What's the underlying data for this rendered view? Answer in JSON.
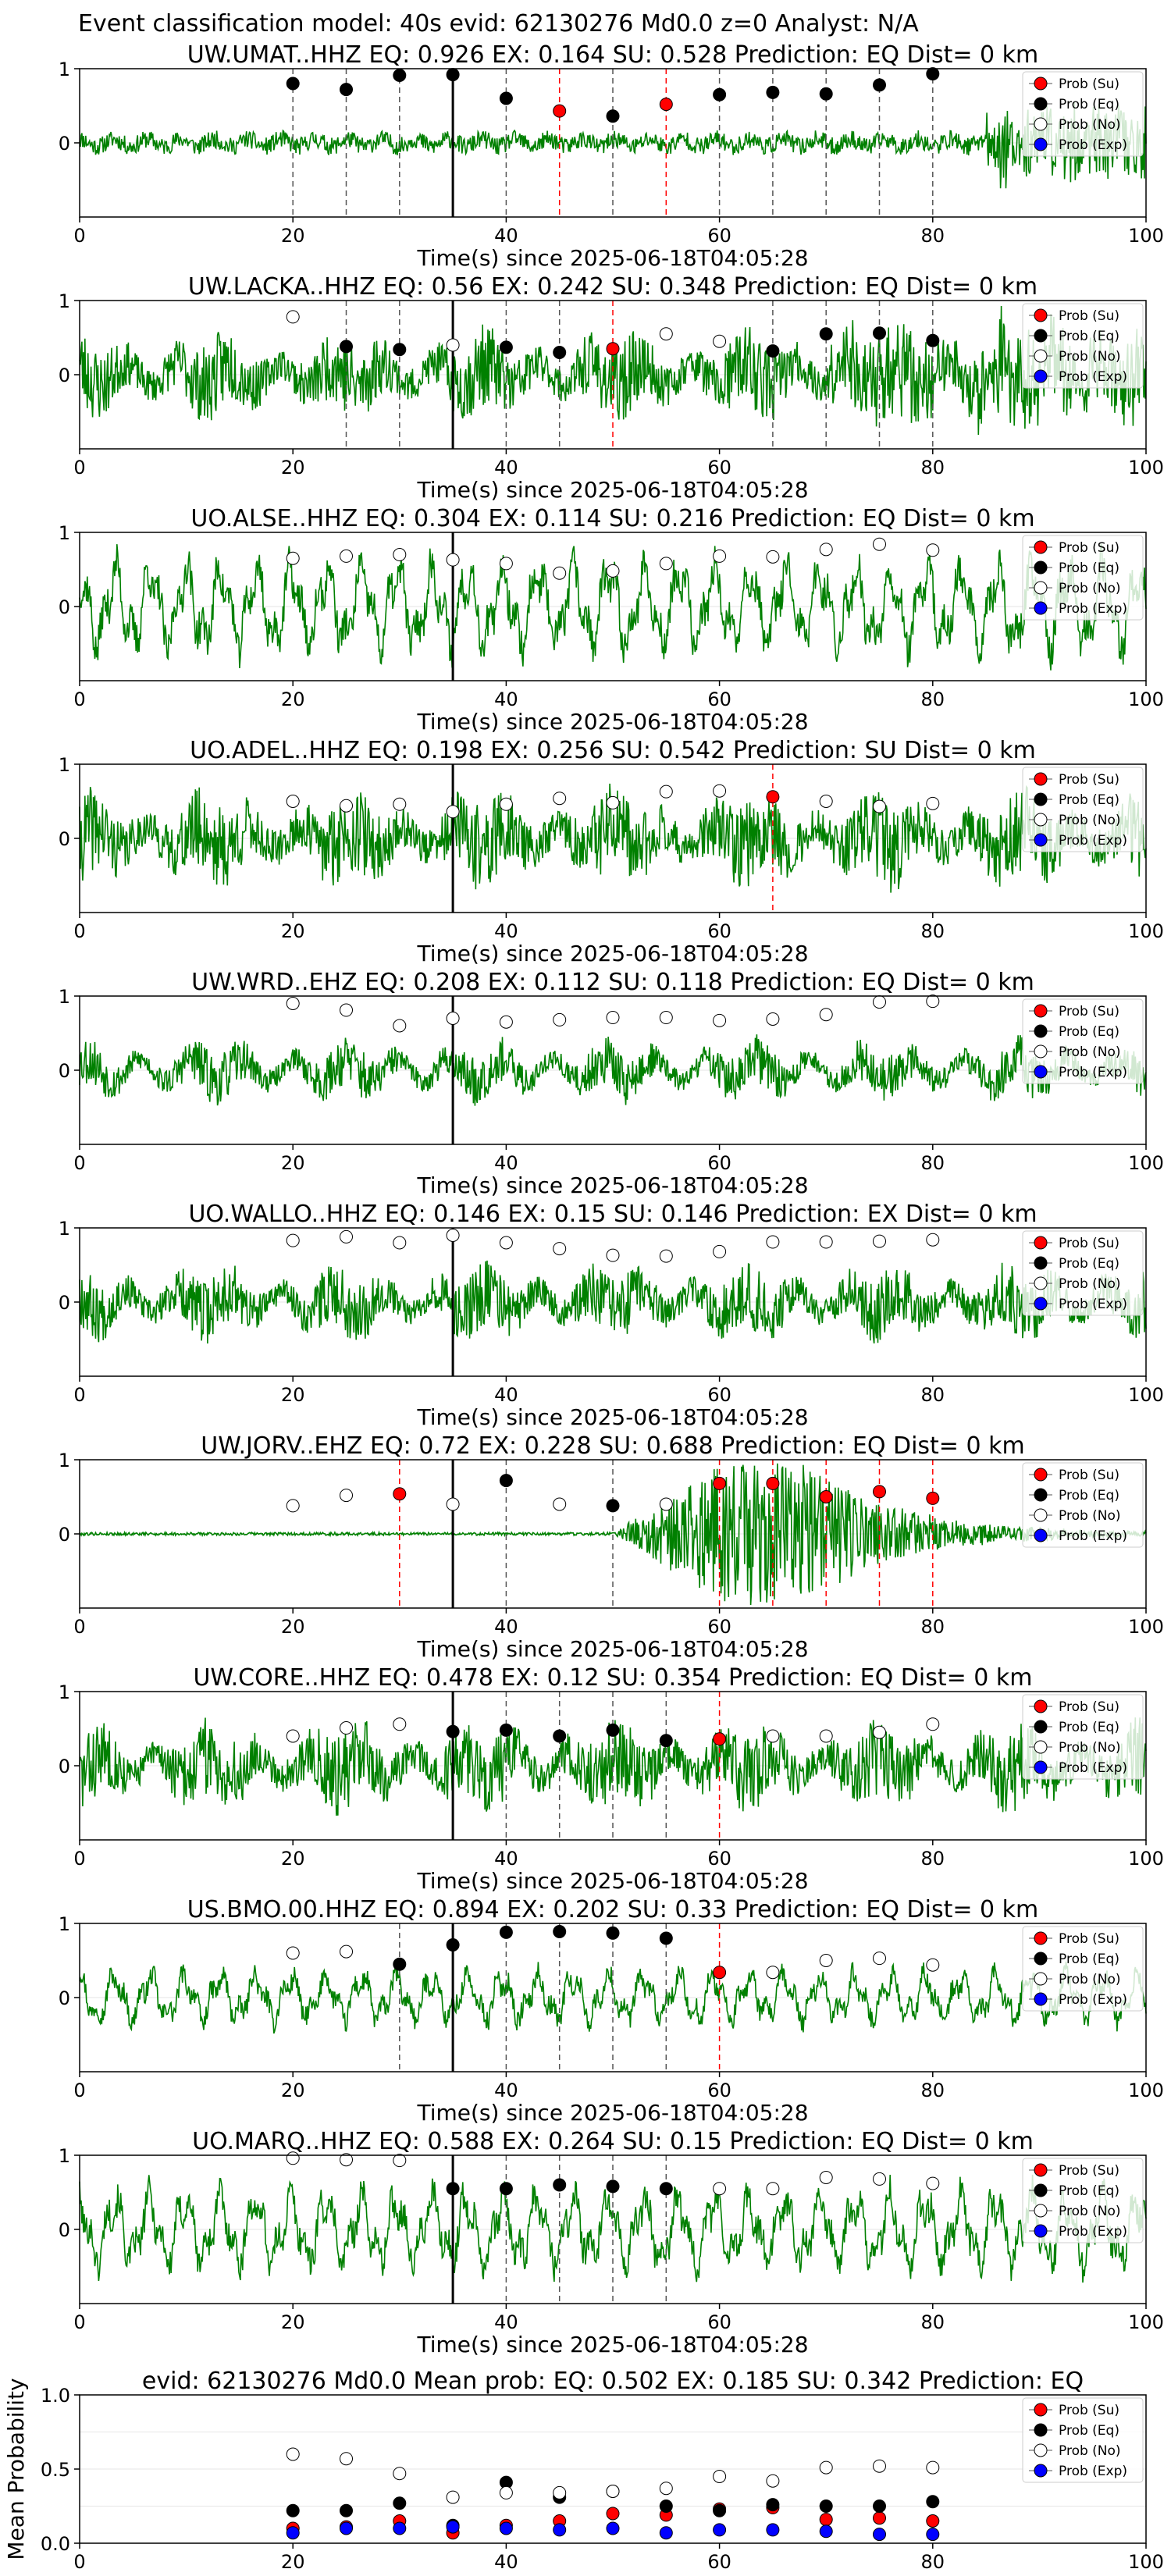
{
  "figure": {
    "title": "Event classification model: 40s evid: 62130276 Md0.0 z=0 Analyst: N/A"
  },
  "legend": {
    "entries": [
      {
        "name": "Prob (Su)",
        "color": "#ff0000"
      },
      {
        "name": "Prob (Eq)",
        "color": "#000000"
      },
      {
        "name": "Prob (No)",
        "color": "#ffffff"
      },
      {
        "name": "Prob (Exp)",
        "color": "#0000ff"
      }
    ]
  },
  "colors": {
    "waveform": "#008000",
    "su_marker": "#ff0000",
    "eq_marker": "#000000",
    "no_marker": "#ffffff",
    "exp_marker": "#0000ff",
    "origin_line": "#000000",
    "su_line": "#ff0000",
    "eq_line": "#555555"
  },
  "chart_data": {
    "type": "line",
    "xlim": [
      0,
      100
    ],
    "x_ticks": [
      0,
      20,
      40,
      60,
      80,
      100
    ],
    "x_tick_labels": [
      "0",
      "20",
      "40",
      "60",
      "80",
      "100"
    ],
    "y_ticks": [
      0,
      1
    ],
    "y_tick_labels": [
      "0",
      "1"
    ],
    "xlabel": "Time(s) since 2025-06-18T04:05:28",
    "origin_time": 35,
    "window_times": [
      20,
      25,
      30,
      35,
      40,
      45,
      50,
      55,
      60,
      65,
      70,
      75,
      80
    ],
    "panels": [
      {
        "title": "UW.UMAT..HHZ   EQ: 0.926  EX: 0.164  SU: 0.528   Prediction: EQ    Dist= 0 km",
        "waveform": {
          "amplitude": 0.12,
          "seed": 11,
          "style": "quiet",
          "burst_start": 85,
          "burst_amp": 0.8
        },
        "windows": [
          {
            "t": 20,
            "class": "eq",
            "p": 0.8
          },
          {
            "t": 25,
            "class": "eq",
            "p": 0.72
          },
          {
            "t": 30,
            "class": "eq",
            "p": 0.91
          },
          {
            "t": 35,
            "class": "eq",
            "p": 0.92
          },
          {
            "t": 40,
            "class": "eq",
            "p": 0.6
          },
          {
            "t": 45,
            "class": "su",
            "p": 0.43
          },
          {
            "t": 50,
            "class": "eq",
            "p": 0.36
          },
          {
            "t": 55,
            "class": "su",
            "p": 0.52
          },
          {
            "t": 60,
            "class": "eq",
            "p": 0.65
          },
          {
            "t": 65,
            "class": "eq",
            "p": 0.68
          },
          {
            "t": 70,
            "class": "eq",
            "p": 0.66
          },
          {
            "t": 75,
            "class": "eq",
            "p": 0.78
          },
          {
            "t": 80,
            "class": "eq",
            "p": 0.93
          }
        ]
      },
      {
        "title": "UW.LACKA..HHZ   EQ: 0.56  EX: 0.242  SU: 0.348   Prediction: EQ    Dist= 0 km",
        "waveform": {
          "amplitude": 0.55,
          "seed": 23,
          "style": "noisy",
          "burst_start": 70,
          "burst_amp": 0.9
        },
        "windows": [
          {
            "t": 20,
            "class": "no",
            "p": 0.78
          },
          {
            "t": 25,
            "class": "eq",
            "p": 0.38
          },
          {
            "t": 30,
            "class": "eq",
            "p": 0.34
          },
          {
            "t": 35,
            "class": "no",
            "p": 0.4
          },
          {
            "t": 40,
            "class": "eq",
            "p": 0.37
          },
          {
            "t": 45,
            "class": "eq",
            "p": 0.3
          },
          {
            "t": 50,
            "class": "su",
            "p": 0.35
          },
          {
            "t": 55,
            "class": "no",
            "p": 0.55
          },
          {
            "t": 60,
            "class": "no",
            "p": 0.45
          },
          {
            "t": 65,
            "class": "eq",
            "p": 0.32
          },
          {
            "t": 70,
            "class": "eq",
            "p": 0.55
          },
          {
            "t": 75,
            "class": "eq",
            "p": 0.56
          },
          {
            "t": 80,
            "class": "eq",
            "p": 0.46
          }
        ]
      },
      {
        "title": "UO.ALSE..HHZ   EQ: 0.304  EX: 0.114  SU: 0.216   Prediction: EQ    Dist= 0 km",
        "waveform": {
          "amplitude": 0.7,
          "seed": 37,
          "style": "wavy",
          "burst_start": 0,
          "burst_amp": 0
        },
        "windows": [
          {
            "t": 20,
            "class": "no",
            "p": 0.65
          },
          {
            "t": 25,
            "class": "no",
            "p": 0.68
          },
          {
            "t": 30,
            "class": "no",
            "p": 0.7
          },
          {
            "t": 35,
            "class": "no",
            "p": 0.63
          },
          {
            "t": 40,
            "class": "no",
            "p": 0.58
          },
          {
            "t": 45,
            "class": "no",
            "p": 0.45
          },
          {
            "t": 50,
            "class": "no",
            "p": 0.48
          },
          {
            "t": 55,
            "class": "no",
            "p": 0.58
          },
          {
            "t": 60,
            "class": "no",
            "p": 0.68
          },
          {
            "t": 65,
            "class": "no",
            "p": 0.67
          },
          {
            "t": 70,
            "class": "no",
            "p": 0.77
          },
          {
            "t": 75,
            "class": "no",
            "p": 0.84
          },
          {
            "t": 80,
            "class": "no",
            "p": 0.76
          }
        ]
      },
      {
        "title": "UO.ADEL..HHZ   EQ: 0.198  EX: 0.256  SU: 0.542   Prediction: SU    Dist= 0 km",
        "waveform": {
          "amplitude": 0.6,
          "seed": 41,
          "style": "noisy",
          "burst_start": 0,
          "burst_amp": 0
        },
        "windows": [
          {
            "t": 20,
            "class": "no",
            "p": 0.5
          },
          {
            "t": 25,
            "class": "no",
            "p": 0.44
          },
          {
            "t": 30,
            "class": "no",
            "p": 0.46
          },
          {
            "t": 35,
            "class": "no",
            "p": 0.36
          },
          {
            "t": 40,
            "class": "no",
            "p": 0.46
          },
          {
            "t": 45,
            "class": "no",
            "p": 0.54
          },
          {
            "t": 50,
            "class": "no",
            "p": 0.48
          },
          {
            "t": 55,
            "class": "no",
            "p": 0.63
          },
          {
            "t": 60,
            "class": "no",
            "p": 0.64
          },
          {
            "t": 65,
            "class": "su",
            "p": 0.56
          },
          {
            "t": 70,
            "class": "no",
            "p": 0.5
          },
          {
            "t": 75,
            "class": "no",
            "p": 0.43
          },
          {
            "t": 80,
            "class": "no",
            "p": 0.47
          }
        ]
      },
      {
        "title": "UW.WRD..EHZ   EQ: 0.208  EX: 0.112  SU: 0.118   Prediction: EQ    Dist= 0 km",
        "waveform": {
          "amplitude": 0.35,
          "seed": 53,
          "style": "noisy",
          "burst_start": 0,
          "burst_amp": 0
        },
        "windows": [
          {
            "t": 20,
            "class": "no",
            "p": 0.9
          },
          {
            "t": 25,
            "class": "no",
            "p": 0.81
          },
          {
            "t": 30,
            "class": "no",
            "p": 0.6
          },
          {
            "t": 35,
            "class": "no",
            "p": 0.7
          },
          {
            "t": 40,
            "class": "no",
            "p": 0.65
          },
          {
            "t": 45,
            "class": "no",
            "p": 0.68
          },
          {
            "t": 50,
            "class": "no",
            "p": 0.71
          },
          {
            "t": 55,
            "class": "no",
            "p": 0.71
          },
          {
            "t": 60,
            "class": "no",
            "p": 0.67
          },
          {
            "t": 65,
            "class": "no",
            "p": 0.69
          },
          {
            "t": 70,
            "class": "no",
            "p": 0.75
          },
          {
            "t": 75,
            "class": "no",
            "p": 0.92
          },
          {
            "t": 80,
            "class": "no",
            "p": 0.93
          }
        ]
      },
      {
        "title": "UO.WALLO..HHZ   EQ: 0.146  EX: 0.15  SU: 0.146   Prediction: EX    Dist= 0 km",
        "waveform": {
          "amplitude": 0.45,
          "seed": 67,
          "style": "noisy",
          "burst_start": 0,
          "burst_amp": 0
        },
        "windows": [
          {
            "t": 20,
            "class": "no",
            "p": 0.83
          },
          {
            "t": 25,
            "class": "no",
            "p": 0.88
          },
          {
            "t": 30,
            "class": "no",
            "p": 0.8
          },
          {
            "t": 35,
            "class": "no",
            "p": 0.9
          },
          {
            "t": 40,
            "class": "no",
            "p": 0.8
          },
          {
            "t": 45,
            "class": "no",
            "p": 0.72
          },
          {
            "t": 50,
            "class": "no",
            "p": 0.63
          },
          {
            "t": 55,
            "class": "no",
            "p": 0.62
          },
          {
            "t": 60,
            "class": "no",
            "p": 0.68
          },
          {
            "t": 65,
            "class": "no",
            "p": 0.81
          },
          {
            "t": 70,
            "class": "no",
            "p": 0.81
          },
          {
            "t": 75,
            "class": "no",
            "p": 0.82
          },
          {
            "t": 80,
            "class": "no",
            "p": 0.84
          }
        ]
      },
      {
        "title": "UW.JORV..EHZ   EQ: 0.72  EX: 0.228  SU: 0.688   Prediction: EQ    Dist= 0 km",
        "waveform": {
          "amplitude": 0.02,
          "seed": 79,
          "style": "event",
          "burst_start": 50,
          "burst_amp": 0.95
        },
        "windows": [
          {
            "t": 20,
            "class": "no",
            "p": 0.38
          },
          {
            "t": 25,
            "class": "no",
            "p": 0.52
          },
          {
            "t": 30,
            "class": "su",
            "p": 0.54
          },
          {
            "t": 35,
            "class": "no",
            "p": 0.4
          },
          {
            "t": 40,
            "class": "eq",
            "p": 0.72
          },
          {
            "t": 45,
            "class": "no",
            "p": 0.4
          },
          {
            "t": 50,
            "class": "eq",
            "p": 0.38
          },
          {
            "t": 55,
            "class": "no",
            "p": 0.4
          },
          {
            "t": 60,
            "class": "su",
            "p": 0.68
          },
          {
            "t": 65,
            "class": "su",
            "p": 0.68
          },
          {
            "t": 70,
            "class": "su",
            "p": 0.5
          },
          {
            "t": 75,
            "class": "su",
            "p": 0.57
          },
          {
            "t": 80,
            "class": "su",
            "p": 0.48
          }
        ]
      },
      {
        "title": "UW.CORE..HHZ   EQ: 0.478  EX: 0.12  SU: 0.354   Prediction: EQ    Dist= 0 km",
        "waveform": {
          "amplitude": 0.55,
          "seed": 83,
          "style": "noisy",
          "burst_start": 0,
          "burst_amp": 0
        },
        "windows": [
          {
            "t": 20,
            "class": "no",
            "p": 0.4
          },
          {
            "t": 25,
            "class": "no",
            "p": 0.51
          },
          {
            "t": 30,
            "class": "no",
            "p": 0.56
          },
          {
            "t": 35,
            "class": "eq",
            "p": 0.46
          },
          {
            "t": 40,
            "class": "eq",
            "p": 0.48
          },
          {
            "t": 45,
            "class": "eq",
            "p": 0.4
          },
          {
            "t": 50,
            "class": "eq",
            "p": 0.48
          },
          {
            "t": 55,
            "class": "eq",
            "p": 0.34
          },
          {
            "t": 60,
            "class": "su",
            "p": 0.36
          },
          {
            "t": 65,
            "class": "no",
            "p": 0.4
          },
          {
            "t": 70,
            "class": "no",
            "p": 0.4
          },
          {
            "t": 75,
            "class": "no",
            "p": 0.45
          },
          {
            "t": 80,
            "class": "no",
            "p": 0.56
          }
        ]
      },
      {
        "title": "US.BMO.00.HHZ   EQ: 0.894  EX: 0.202  SU: 0.33   Prediction: EQ    Dist= 0 km",
        "waveform": {
          "amplitude": 0.4,
          "seed": 97,
          "style": "wavy",
          "burst_start": 0,
          "burst_amp": 0
        },
        "windows": [
          {
            "t": 20,
            "class": "no",
            "p": 0.6
          },
          {
            "t": 25,
            "class": "no",
            "p": 0.62
          },
          {
            "t": 30,
            "class": "eq",
            "p": 0.45
          },
          {
            "t": 35,
            "class": "eq",
            "p": 0.71
          },
          {
            "t": 40,
            "class": "eq",
            "p": 0.88
          },
          {
            "t": 45,
            "class": "eq",
            "p": 0.89
          },
          {
            "t": 50,
            "class": "eq",
            "p": 0.87
          },
          {
            "t": 55,
            "class": "eq",
            "p": 0.8
          },
          {
            "t": 60,
            "class": "su",
            "p": 0.34
          },
          {
            "t": 65,
            "class": "no",
            "p": 0.34
          },
          {
            "t": 70,
            "class": "no",
            "p": 0.5
          },
          {
            "t": 75,
            "class": "no",
            "p": 0.53
          },
          {
            "t": 80,
            "class": "no",
            "p": 0.44
          }
        ]
      },
      {
        "title": "UO.MARQ..HHZ   EQ: 0.588  EX: 0.264  SU: 0.15   Prediction: EQ    Dist= 0 km",
        "waveform": {
          "amplitude": 0.6,
          "seed": 101,
          "style": "wavy",
          "burst_start": 0,
          "burst_amp": 0
        },
        "windows": [
          {
            "t": 20,
            "class": "no",
            "p": 0.96
          },
          {
            "t": 25,
            "class": "no",
            "p": 0.94
          },
          {
            "t": 30,
            "class": "no",
            "p": 0.93
          },
          {
            "t": 35,
            "class": "eq",
            "p": 0.55
          },
          {
            "t": 40,
            "class": "eq",
            "p": 0.55
          },
          {
            "t": 45,
            "class": "eq",
            "p": 0.6
          },
          {
            "t": 50,
            "class": "eq",
            "p": 0.58
          },
          {
            "t": 55,
            "class": "eq",
            "p": 0.55
          },
          {
            "t": 60,
            "class": "no",
            "p": 0.55
          },
          {
            "t": 65,
            "class": "no",
            "p": 0.55
          },
          {
            "t": 70,
            "class": "no",
            "p": 0.7
          },
          {
            "t": 75,
            "class": "no",
            "p": 0.68
          },
          {
            "t": 80,
            "class": "no",
            "p": 0.62
          }
        ]
      }
    ],
    "mean_panel": {
      "title": "evid: 62130276  Md0.0   Mean prob:   EQ: 0.502  EX: 0.185  SU: 0.342   Prediction: EQ",
      "ylabel": "Mean Probability",
      "ylim": [
        0,
        1
      ],
      "y_ticks": [
        0,
        0.5,
        1
      ],
      "y_tick_labels": [
        "0.0",
        "0.5",
        "1.0"
      ],
      "series": [
        {
          "name": "Prob (Su)",
          "class": "su",
          "values": [
            0.1,
            0.11,
            0.15,
            0.07,
            0.12,
            0.15,
            0.2,
            0.19,
            0.23,
            0.24,
            0.16,
            0.17,
            0.15
          ]
        },
        {
          "name": "Prob (Eq)",
          "class": "eq",
          "values": [
            0.22,
            0.22,
            0.27,
            0.12,
            0.41,
            0.31,
            0.35,
            0.25,
            0.22,
            0.26,
            0.25,
            0.25,
            0.28
          ]
        },
        {
          "name": "Prob (No)",
          "class": "no",
          "values": [
            0.6,
            0.57,
            0.47,
            0.31,
            0.34,
            0.34,
            0.35,
            0.37,
            0.45,
            0.42,
            0.51,
            0.52,
            0.51
          ]
        },
        {
          "name": "Prob (Exp)",
          "class": "exp",
          "values": [
            0.07,
            0.1,
            0.1,
            0.11,
            0.1,
            0.09,
            0.1,
            0.07,
            0.09,
            0.09,
            0.08,
            0.06,
            0.06
          ]
        }
      ]
    }
  }
}
